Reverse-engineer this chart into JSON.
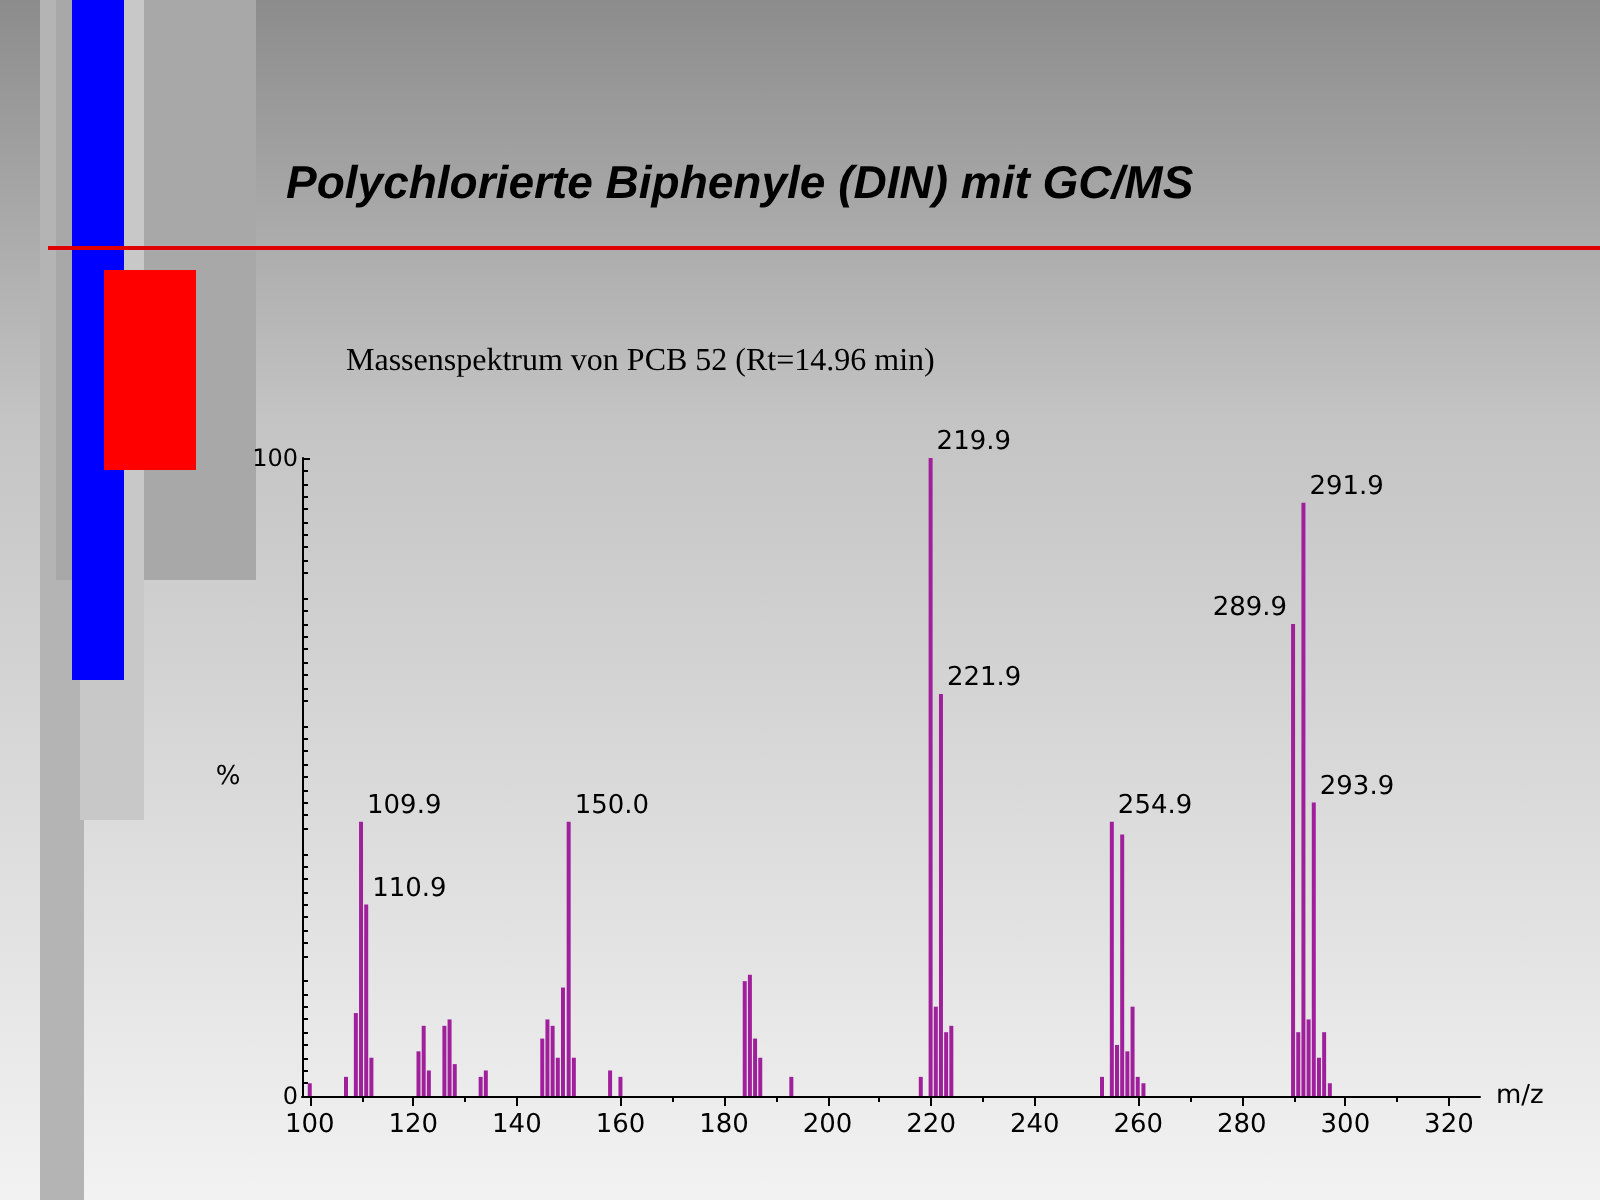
{
  "chart_data": {
    "type": "bar",
    "title": "Polychlorierte Biphenyle (DIN) mit GC/MS",
    "subtitle": "Massenspektrum von PCB 52 (Rt=14.96 min)",
    "xlabel": "m/z",
    "ylabel": "%",
    "x": [
      100,
      107,
      108.9,
      109.9,
      110.9,
      111.9,
      121,
      122,
      123,
      126,
      127,
      128,
      133,
      134,
      144.9,
      145.9,
      146.9,
      147.9,
      148.9,
      150.0,
      151,
      158,
      160,
      184,
      185,
      186,
      187,
      193,
      218,
      219.9,
      220.9,
      221.9,
      222.9,
      223.9,
      253,
      254.9,
      255.9,
      256.9,
      257.9,
      258.9,
      259.9,
      261,
      289.9,
      290.9,
      291.9,
      292.9,
      293.9,
      294.9,
      295.9,
      297
    ],
    "values": [
      2,
      3,
      13,
      43,
      30,
      6,
      7,
      11,
      4,
      11,
      12,
      5,
      3,
      4,
      9,
      12,
      11,
      6,
      17,
      43,
      6,
      4,
      3,
      18,
      19,
      9,
      6,
      3,
      3,
      100,
      14,
      63,
      10,
      11,
      3,
      43,
      8,
      41,
      7,
      14,
      3,
      2,
      74,
      10,
      93,
      12,
      46,
      6,
      10,
      2
    ],
    "annotations": [
      {
        "text": "109.9",
        "x": 109.9,
        "y": 43
      },
      {
        "text": "110.9",
        "x": 110.9,
        "y": 30
      },
      {
        "text": "150.0",
        "x": 150.0,
        "y": 43
      },
      {
        "text": "219.9",
        "x": 219.9,
        "y": 100
      },
      {
        "text": "221.9",
        "x": 221.9,
        "y": 63
      },
      {
        "text": "254.9",
        "x": 254.9,
        "y": 43
      },
      {
        "text": "289.9",
        "x": 289.9,
        "y": 74
      },
      {
        "text": "291.9",
        "x": 291.9,
        "y": 93
      },
      {
        "text": "293.9",
        "x": 293.9,
        "y": 46
      }
    ],
    "color": "#a0209c",
    "xlim": [
      98.5,
      326
    ],
    "xticks": [
      100,
      120,
      140,
      160,
      180,
      200,
      220,
      240,
      260,
      280,
      300,
      320
    ],
    "ylim": [
      0,
      100
    ],
    "yticks": [
      0,
      100
    ],
    "grid": false
  }
}
